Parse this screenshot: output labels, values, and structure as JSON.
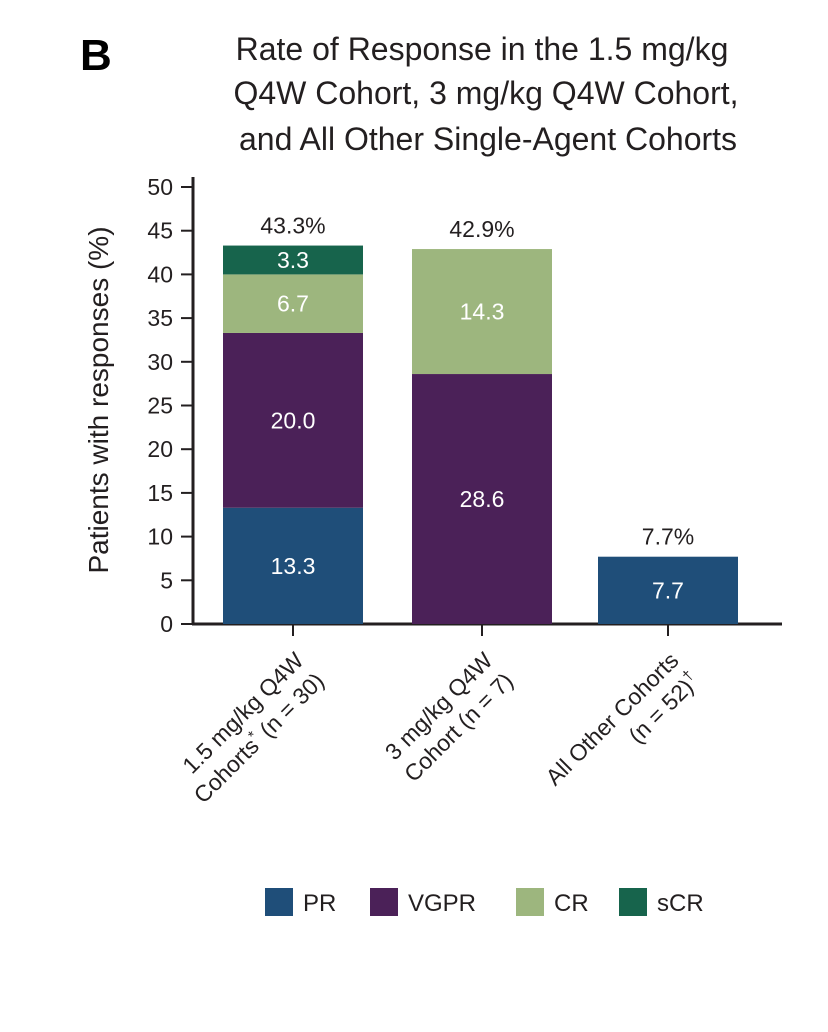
{
  "panel_letter": "B",
  "chart_data": {
    "type": "bar",
    "stacked": true,
    "title_lines": [
      "Rate of Response in the 1.5 mg/kg",
      "Q4W Cohort, 3 mg/kg Q4W Cohort,",
      "and All Other Single-Agent Cohorts"
    ],
    "ylabel": "Patients with responses (%)",
    "ylim": [
      0,
      50
    ],
    "yticks": [
      0,
      5,
      10,
      15,
      20,
      25,
      30,
      35,
      40,
      45,
      50
    ],
    "categories": [
      {
        "line1": "1.5 mg/kg Q4W",
        "line2_main": "Cohorts",
        "line2_sup": "*",
        "line2_rest": " (n = 30)"
      },
      {
        "line1": "3 mg/kg Q4W",
        "line2_main": "Cohort (n = 7)",
        "line2_sup": "",
        "line2_rest": ""
      },
      {
        "line1": "All Other Cohorts",
        "line2_main": "(n = 52)",
        "line2_sup": "†",
        "line2_rest": ""
      }
    ],
    "series": [
      {
        "name": "PR",
        "color": "#1f4e79",
        "values": [
          13.3,
          0,
          7.7
        ],
        "labels": [
          "13.3",
          "",
          "7.7"
        ]
      },
      {
        "name": "VGPR",
        "color": "#4b2158",
        "values": [
          20.0,
          28.6,
          0
        ],
        "labels": [
          "20.0",
          "28.6",
          ""
        ]
      },
      {
        "name": "CR",
        "color": "#9db67e",
        "values": [
          6.7,
          14.3,
          0
        ],
        "labels": [
          "6.7",
          "14.3",
          ""
        ]
      },
      {
        "name": "sCR",
        "color": "#17644c",
        "values": [
          3.3,
          0,
          0
        ],
        "labels": [
          "3.3",
          "",
          ""
        ]
      }
    ],
    "totals": [
      43.3,
      42.9,
      7.7
    ],
    "total_labels": [
      "43.3%",
      "42.9%",
      "7.7%"
    ],
    "legend_position": "bottom",
    "grid": false
  }
}
